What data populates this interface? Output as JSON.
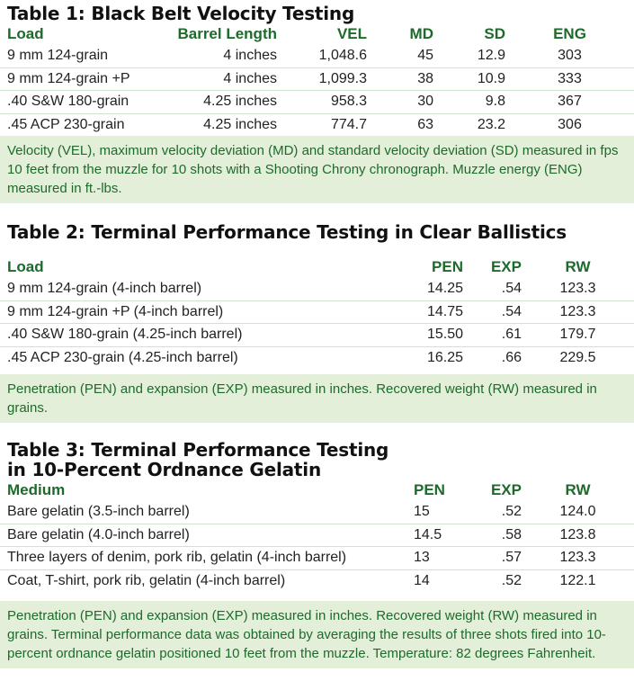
{
  "table1": {
    "title": "Table 1: Black Belt Velocity Testing",
    "headers": [
      "Load",
      "Barrel Length",
      "VEL",
      "MD",
      "SD",
      "ENG"
    ],
    "rows": [
      [
        "9 mm 124-grain",
        "4 inches",
        "1,048.6",
        "45",
        "12.9",
        "303"
      ],
      [
        "9 mm 124-grain +P",
        "4 inches",
        "1,099.3",
        "38",
        "10.9",
        "333"
      ],
      [
        ".40 S&W 180-grain",
        "4.25 inches",
        "958.3",
        "30",
        "9.8",
        "367"
      ],
      [
        ".45 ACP 230-grain",
        "4.25 inches",
        "774.7",
        "63",
        "23.2",
        "306"
      ]
    ],
    "note": "Velocity (VEL), maximum velocity deviation (MD) and standard velocity deviation (SD) measured in fps 10 feet from the muzzle for 10 shots with a Shooting Chrony chronograph. Muzzle energy (ENG) measured in ft.-lbs."
  },
  "table2": {
    "title": "Table 2: Terminal Performance Testing in Clear Ballistics",
    "headers": [
      "Load",
      "PEN",
      "EXP",
      "RW"
    ],
    "rows": [
      [
        "9 mm 124-grain (4-inch barrel)",
        "14.25",
        ".54",
        "123.3"
      ],
      [
        "9 mm 124-grain +P (4-inch barrel)",
        "14.75",
        ".54",
        "123.3"
      ],
      [
        ".40 S&W 180-grain (4.25-inch barrel)",
        "15.50",
        ".61",
        "179.7"
      ],
      [
        ".45 ACP 230-grain (4.25-inch barrel)",
        "16.25",
        ".66",
        "229.5"
      ]
    ],
    "note": "Penetration (PEN) and expansion (EXP) measured in inches. Recovered weight (RW) measured in grains."
  },
  "table3": {
    "title_line1": "Table 3: Terminal Performance Testing",
    "title_line2": "in 10-Percent Ordnance Gelatin",
    "headers": [
      "Medium",
      "PEN",
      "EXP",
      "RW"
    ],
    "rows": [
      [
        "Bare gelatin (3.5-inch barrel)",
        "15",
        ".52",
        "124.0"
      ],
      [
        "Bare gelatin (4.0-inch barrel)",
        "14.5",
        ".58",
        "123.8"
      ],
      [
        "Three layers of denim, pork rib, gelatin (4-inch barrel)",
        "13",
        ".57",
        "123.3"
      ],
      [
        "Coat, T-shirt, pork rib, gelatin (4-inch barrel)",
        "14",
        ".52",
        "122.1"
      ]
    ],
    "note": "Penetration (PEN) and expansion (EXP) measured in inches. Recovered weight (RW) measured in grains. Terminal performance data was obtained by averaging the results of three shots fired into 10-percent ordnance gelatin positioned 10 feet from the muzzle. Temperature: 82 degrees Fahrenheit."
  }
}
